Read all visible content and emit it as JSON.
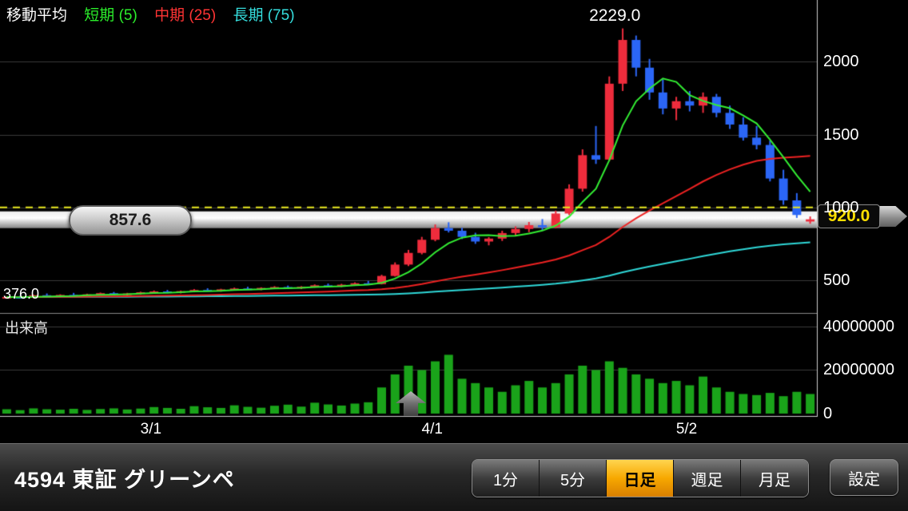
{
  "legend": {
    "title": "移動平均",
    "short": "短期 (5)",
    "mid": "中期 (25)",
    "long": "長期 (75)"
  },
  "labels": {
    "peak": "2229.0",
    "low": "376.0",
    "left_pill": "857.6",
    "price_tag": "920.0",
    "volume_title": "出来高"
  },
  "price_axis": [
    {
      "text": "2000",
      "value": 2000
    },
    {
      "text": "1500",
      "value": 1500
    },
    {
      "text": "1000",
      "value": 1000
    },
    {
      "text": "500",
      "value": 500
    }
  ],
  "volume_axis": [
    {
      "text": "40000000",
      "value": 40000000
    },
    {
      "text": "20000000",
      "value": 20000000
    },
    {
      "text": "0",
      "value": 0
    }
  ],
  "x_axis": [
    {
      "text": "3/1",
      "index": 11
    },
    {
      "text": "4/1",
      "index": 32
    },
    {
      "text": "5/2",
      "index": 51
    }
  ],
  "bottom_bar": {
    "title": "4594 東証 グリーンペ",
    "buttons": [
      {
        "name": "1min",
        "label": "1分",
        "selected": false
      },
      {
        "name": "5min",
        "label": "5分",
        "selected": false
      },
      {
        "name": "daily",
        "label": "日足",
        "selected": true
      },
      {
        "name": "weekly",
        "label": "週足",
        "selected": false
      },
      {
        "name": "monthly",
        "label": "月足",
        "selected": false
      }
    ],
    "settings": "設定"
  },
  "colors": {
    "up_candle": "#ee2c3c",
    "down_candle": "#2b66f6",
    "ma_short": "#33ee33",
    "ma_mid": "#ee2222",
    "ma_long": "#2fd8d8",
    "volume_bar": "#1aa31a",
    "dashed_line": "#e8e81c",
    "grid": "#3a3a3a",
    "selected_tab": "#f7a800",
    "price_tag_text": "#ffdf00"
  },
  "chart_data": {
    "type": "candlestick+volume",
    "title": "4594 東証 グリーンペ 日足",
    "current_price": 920.0,
    "reference_price": 857.6,
    "peak_price": 2229.0,
    "range_low": 376.0,
    "price_ylim": [
      300,
      2380
    ],
    "volume_ylim": [
      0,
      44000000
    ],
    "ma_periods": {
      "short": 5,
      "mid": 25,
      "long": 75
    },
    "x_tick_labels": [
      "3/1",
      "4/1",
      "5/2"
    ],
    "candles_format": [
      "open",
      "high",
      "low",
      "close",
      "volume"
    ],
    "candles": [
      [
        378,
        392,
        376,
        388,
        2000000
      ],
      [
        388,
        398,
        378,
        382,
        1600000
      ],
      [
        382,
        404,
        380,
        400,
        2400000
      ],
      [
        400,
        412,
        390,
        394,
        2000000
      ],
      [
        394,
        406,
        386,
        402,
        1800000
      ],
      [
        402,
        416,
        394,
        396,
        2200000
      ],
      [
        396,
        410,
        388,
        406,
        1700000
      ],
      [
        406,
        418,
        398,
        414,
        2100000
      ],
      [
        414,
        422,
        400,
        404,
        2400000
      ],
      [
        404,
        416,
        396,
        412,
        1900000
      ],
      [
        412,
        424,
        404,
        420,
        2300000
      ],
      [
        420,
        432,
        410,
        426,
        3000000
      ],
      [
        426,
        436,
        414,
        418,
        2600000
      ],
      [
        418,
        432,
        412,
        428,
        2200000
      ],
      [
        428,
        442,
        420,
        436,
        3400000
      ],
      [
        436,
        448,
        426,
        430,
        2900000
      ],
      [
        430,
        444,
        424,
        440,
        2600000
      ],
      [
        440,
        452,
        432,
        446,
        3800000
      ],
      [
        446,
        458,
        436,
        442,
        3100000
      ],
      [
        442,
        454,
        434,
        450,
        2700000
      ],
      [
        450,
        462,
        442,
        456,
        3600000
      ],
      [
        456,
        466,
        444,
        448,
        4100000
      ],
      [
        448,
        462,
        442,
        458,
        3200000
      ],
      [
        458,
        474,
        452,
        468,
        5000000
      ],
      [
        468,
        480,
        458,
        462,
        4200000
      ],
      [
        462,
        478,
        456,
        472,
        3700000
      ],
      [
        472,
        488,
        464,
        482,
        4600000
      ],
      [
        482,
        498,
        472,
        476,
        5200000
      ],
      [
        476,
        540,
        474,
        532,
        12000000
      ],
      [
        532,
        625,
        528,
        610,
        18000000
      ],
      [
        610,
        710,
        600,
        690,
        22000000
      ],
      [
        690,
        800,
        680,
        780,
        20000000
      ],
      [
        780,
        885,
        770,
        860,
        24000000
      ],
      [
        860,
        900,
        830,
        842,
        27000000
      ],
      [
        842,
        862,
        785,
        800,
        16000000
      ],
      [
        800,
        828,
        752,
        768,
        14000000
      ],
      [
        768,
        798,
        742,
        788,
        12000000
      ],
      [
        788,
        842,
        772,
        826,
        10000000
      ],
      [
        826,
        872,
        804,
        854,
        13000000
      ],
      [
        854,
        902,
        832,
        880,
        15000000
      ],
      [
        880,
        922,
        846,
        866,
        12000000
      ],
      [
        866,
        980,
        858,
        960,
        14000000
      ],
      [
        960,
        1160,
        950,
        1130,
        18000000
      ],
      [
        1130,
        1400,
        1110,
        1360,
        22000000
      ],
      [
        1360,
        1560,
        1300,
        1330,
        20000000
      ],
      [
        1330,
        1900,
        1320,
        1850,
        24000000
      ],
      [
        1850,
        2229,
        1800,
        2150,
        21000000
      ],
      [
        2150,
        2180,
        1900,
        1960,
        18000000
      ],
      [
        1960,
        2020,
        1740,
        1790,
        16000000
      ],
      [
        1790,
        1880,
        1640,
        1680,
        14000000
      ],
      [
        1680,
        1760,
        1600,
        1730,
        15000000
      ],
      [
        1730,
        1800,
        1660,
        1700,
        13000000
      ],
      [
        1700,
        1790,
        1650,
        1760,
        17000000
      ],
      [
        1760,
        1780,
        1620,
        1650,
        12000000
      ],
      [
        1650,
        1700,
        1540,
        1570,
        10000000
      ],
      [
        1570,
        1620,
        1460,
        1480,
        9000000
      ],
      [
        1480,
        1560,
        1400,
        1430,
        8500000
      ],
      [
        1430,
        1460,
        1180,
        1200,
        9500000
      ],
      [
        1200,
        1260,
        1020,
        1050,
        8000000
      ],
      [
        1050,
        1100,
        930,
        950,
        10000000
      ],
      [
        905,
        940,
        890,
        920,
        9000000
      ]
    ]
  }
}
